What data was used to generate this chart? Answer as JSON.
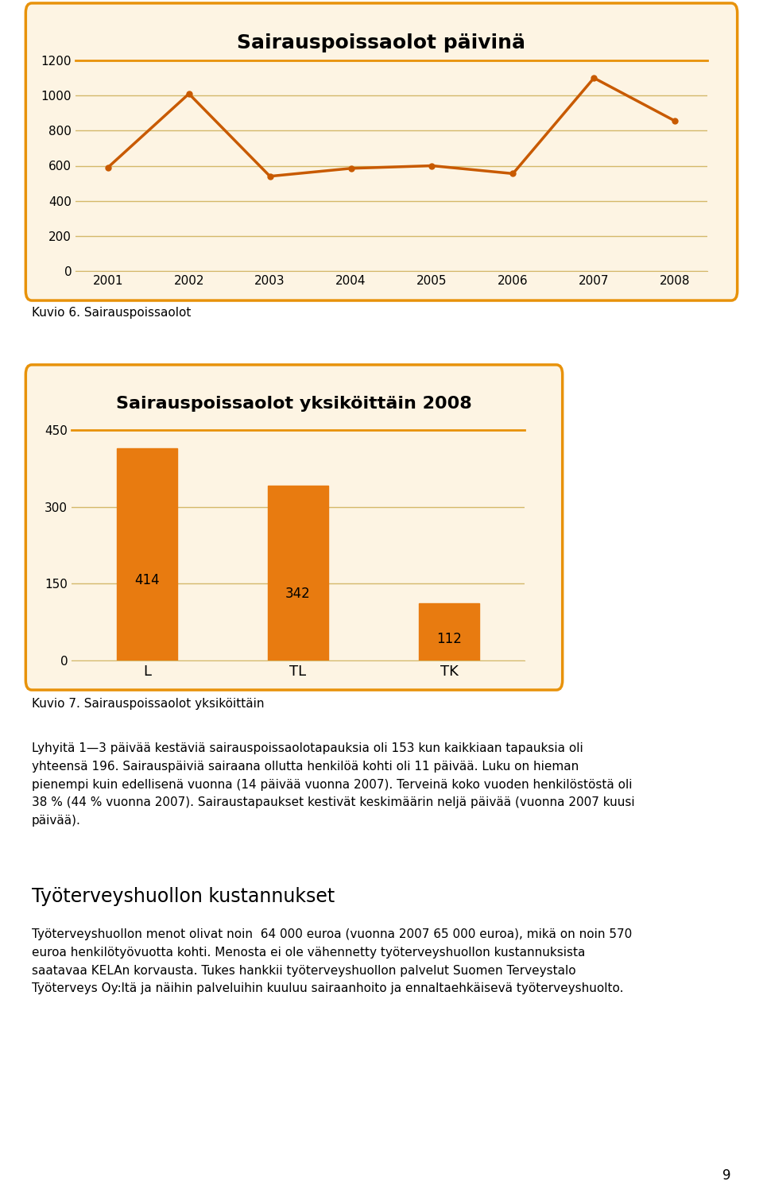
{
  "chart1_title": "Sairauspoissaolot päivinä",
  "chart1_years": [
    2001,
    2002,
    2003,
    2004,
    2005,
    2006,
    2007,
    2008
  ],
  "chart1_values": [
    590,
    1010,
    540,
    585,
    600,
    555,
    1100,
    855
  ],
  "chart1_ylim": [
    0,
    1200
  ],
  "chart1_yticks": [
    0,
    200,
    400,
    600,
    800,
    1000,
    1200
  ],
  "chart1_line_color": "#C85A00",
  "chart1_marker_color": "#C85A00",
  "chart1_bg_color": "#FDF4E3",
  "chart1_border_color": "#E8920A",
  "chart1_grid_color": "#D4B86A",
  "chart2_title": "Sairauspoissaolot yksiköittäin 2008",
  "chart2_categories": [
    "L",
    "TL",
    "TK"
  ],
  "chart2_values": [
    414,
    342,
    112
  ],
  "chart2_ylim": [
    0,
    450
  ],
  "chart2_yticks": [
    0,
    150,
    300,
    450
  ],
  "chart2_bar_color": "#E87B10",
  "chart2_bg_color": "#FDF4E3",
  "chart2_border_color": "#E8920A",
  "chart2_grid_color": "#D4B86A",
  "caption1": "Kuvio 6. Sairauspoissaolot",
  "caption2": "Kuvio 7. Sairauspoissaolot yksiköittäin",
  "body_text1": "Lyhyitä 1—3 päivää kestäviä sairauspoissaolotapauksia oli 153 kun kaikkiaan tapauksia oli\nyhteensä 196. Sairauspäiviä sairaana ollutta henkilöä kohti oli 11 päivää. Luku on hieman\npienempi kuin edellisenä vuonna (14 päivää vuonna 2007). Terveinä koko vuoden henkilöstöstä oli\n38 % (44 % vuonna 2007). Sairaustapaukset kestivät keskimäärin neljä päivää (vuonna 2007 kuusi\npäivää).",
  "section_title": "Työterveyshuollon kustannukset",
  "body_text2": "Työterveyshuollon menot olivat noin  64 000 euroa (vuonna 2007 65 000 euroa), mikä on noin 570\neuroa henkilötyövuotta kohti. Menosta ei ole vähennetty työterveyshuollon kustannuksista\nsaatavaa KELAn korvausta. Tukes hankkii työterveyshuollon palvelut Suomen Terveystalo\nTyöterveys Oy:ltä ja näihin palveluihin kuuluu sairaanhoito ja ennaltaehkäisevä työterveyshuolto.",
  "page_number": "9",
  "bg_white": "#FFFFFF",
  "text_color": "#000000"
}
